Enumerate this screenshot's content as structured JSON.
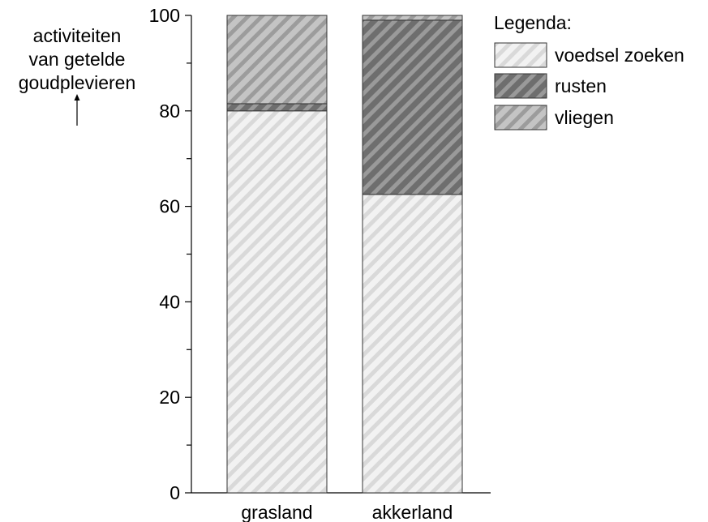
{
  "chart_data": {
    "type": "stacked-bar",
    "title": "",
    "ylabel_lines": [
      "activiteiten",
      "van getelde",
      "goudplevieren"
    ],
    "xlabel": "",
    "ylim": [
      0,
      100
    ],
    "y_major_ticks": [
      0,
      20,
      40,
      60,
      80,
      100
    ],
    "y_minor_ticks": [
      10,
      30,
      50,
      70,
      90
    ],
    "y_tick_labels": [
      "0",
      "20",
      "40",
      "60",
      "80",
      "100"
    ],
    "categories": [
      "grasland",
      "akkerland"
    ],
    "series": [
      {
        "name": "voedsel zoeken",
        "values": [
          80,
          62.5
        ],
        "color": "#f2f2f2",
        "stripe": "#d9d9d9"
      },
      {
        "name": "rusten",
        "values": [
          1.5,
          36.5
        ],
        "color": "#6e6e6e",
        "stripe": "#9a9a9a"
      },
      {
        "name": "vliegen",
        "values": [
          18.5,
          1
        ],
        "color": "#c4c4c4",
        "stripe": "#9c9c9c"
      }
    ],
    "legend": {
      "title": "Legenda:",
      "placement": "top-right"
    },
    "grid": false
  }
}
